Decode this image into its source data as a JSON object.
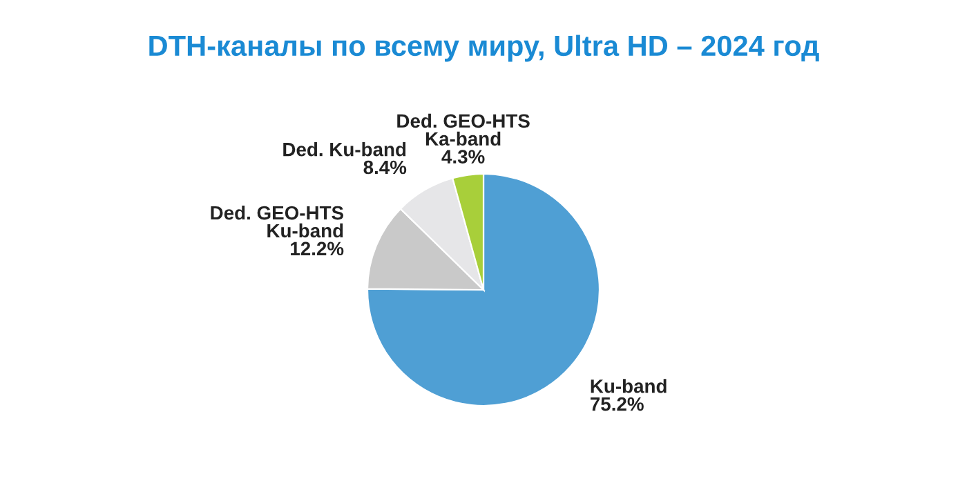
{
  "chart_data": {
    "type": "pie",
    "title": "DTH-каналы по всему миру, Ultra HD – 2024 год",
    "categories": [
      "Ku-band",
      "Ded. GEO-HTS\nKu-band",
      "Ded. Ku-band",
      "Ded. GEO-HTS\nKa-band"
    ],
    "values": [
      75.2,
      12.2,
      8.4,
      4.3
    ],
    "value_labels": [
      "75.2%",
      "12.2%",
      "8.4%",
      "4.3%"
    ],
    "colors": [
      "#4f9fd4",
      "#c9c9c9",
      "#e6e6e8",
      "#a8cf3a"
    ],
    "legend": false
  }
}
